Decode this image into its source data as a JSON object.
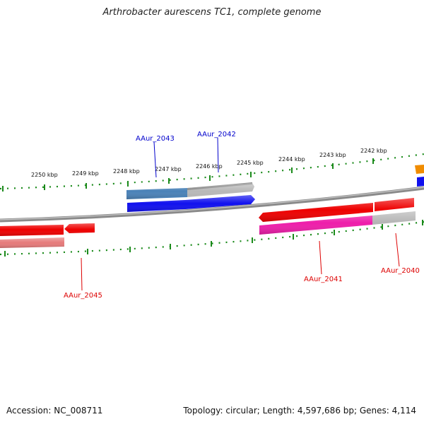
{
  "title": "Arthrobacter aurescens TC1, complete genome",
  "footer": {
    "accession": "Accession: NC_008711",
    "stats": "Topology: circular; Length: 4,597,686 bp; Genes: 4,114"
  },
  "ticks": {
    "outer_labels": [
      "2250 kbp",
      "2249 kbp",
      "2248 kbp",
      "2247 kbp",
      "2246 kbp",
      "2245 kbp",
      "2244 kbp",
      "2243 kbp",
      "2242 kbp"
    ]
  },
  "genes": {
    "aaur_2043": "AAur_2043",
    "aaur_2042": "AAur_2042",
    "aaur_2041": "AAur_2041",
    "aaur_2040": "AAur_2040",
    "aaur_2045": "AAur_2045"
  },
  "colors": {
    "forward_label": "#0000cc",
    "reverse_label": "#dd0000",
    "tick": "#1a8a1a",
    "backbone": "#888888",
    "blue_cds": "#1010ee",
    "steel_blue": "#4a82b8",
    "red_cds": "#ee0000",
    "pink_cds": "#ee1eaa",
    "light_red": "#e67a7a",
    "grey": "#b4b4b4",
    "orange": "#f08c00"
  }
}
